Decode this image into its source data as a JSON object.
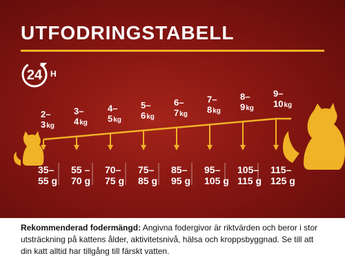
{
  "title": "UTFODRINGSTABELL",
  "badge": {
    "number": "24",
    "unit": "H",
    "icon": "24-hour-clock-icon"
  },
  "colors": {
    "background": "#861612",
    "accent": "#f0b226",
    "text": "#ffffff",
    "footer": "#ffffff"
  },
  "weights": [
    {
      "range": "2–",
      "value": "3",
      "unit": "kg"
    },
    {
      "range": "3–",
      "value": "4",
      "unit": "kg"
    },
    {
      "range": "4–",
      "value": "5",
      "unit": "kg"
    },
    {
      "range": "5–",
      "value": "6",
      "unit": "kg"
    },
    {
      "range": "6–",
      "value": "7",
      "unit": "kg"
    },
    {
      "range": "7–",
      "value": "8",
      "unit": "kg"
    },
    {
      "range": "8–",
      "value": "9",
      "unit": "kg"
    },
    {
      "range": "9–",
      "value": "10",
      "unit": "kg"
    }
  ],
  "portions": [
    {
      "top": "35–",
      "bottom": "55 g"
    },
    {
      "top": "55 –",
      "bottom": "70 g"
    },
    {
      "top": "70–",
      "bottom": "75 g"
    },
    {
      "top": "75–",
      "bottom": "85 g"
    },
    {
      "top": "85–",
      "bottom": "95 g"
    },
    {
      "top": "95–",
      "bottom": "105 g"
    },
    {
      "top": "105–",
      "bottom": "115 g"
    },
    {
      "top": "115–",
      "bottom": "125 g"
    }
  ],
  "icons": {
    "small_cat": "cat-silhouette-small-icon",
    "large_cat": "cat-silhouette-large-icon"
  },
  "note": {
    "label": "Rekommenderad fodermängd:",
    "text": " Angivna fodergivor är riktvärden och beror i stor utsträckning på kattens ålder, aktivitetsnivå, hälsa och kroppsbyggnad. Se till att din katt alltid har tillgång till färskt vatten."
  }
}
